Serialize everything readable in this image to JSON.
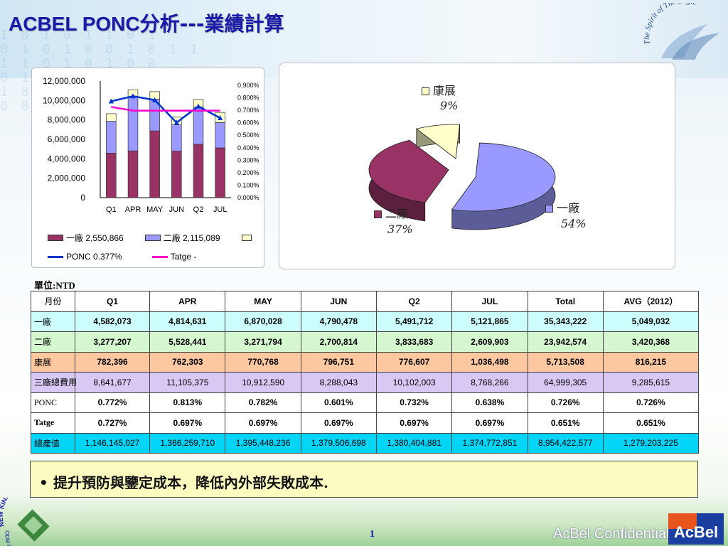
{
  "title": {
    "latin": "ACBEL  PONC",
    "cjk": "分析---業績計算"
  },
  "logos": {
    "eagle": "The Spirit of The Eagle",
    "kinpo_top": "NEW KINPO VALUE",
    "kinpo_bottom": "ODM & EMS Partner",
    "acbel": "AcBel"
  },
  "chart_data": [
    {
      "type": "bar",
      "stacked": true,
      "categories": [
        "Q1",
        "APR",
        "MAY",
        "JUN",
        "Q2",
        "JUL"
      ],
      "y_ticks": [
        "12,000,000",
        "10,000,000",
        "8,000,000",
        "6,000,000",
        "4,000,000",
        "2,000,000",
        "0"
      ],
      "y2_ticks": [
        "0.900%",
        "0.800%",
        "0.700%",
        "0.600%",
        "0.500%",
        "0.400%",
        "0.300%",
        "0.200%",
        "0.100%",
        "0.000%"
      ],
      "ylim": [
        0,
        12000000
      ],
      "y2lim": [
        0,
        0.9
      ],
      "series": [
        {
          "name": "一廠",
          "color": "#993366",
          "values": [
            4582073,
            4814631,
            6870028,
            4790478,
            5491712,
            5121865
          ]
        },
        {
          "name": "二廠",
          "color": "#9999ff",
          "values": [
            3277207,
            5528441,
            3271794,
            2700814,
            3833683,
            2609903
          ]
        },
        {
          "name": "康展",
          "color": "#ffffcc",
          "values": [
            782396,
            762303,
            770768,
            796751,
            776607,
            1036498
          ]
        }
      ],
      "lines": [
        {
          "name": "PONC",
          "color": "#0033cc",
          "values": [
            0.772,
            0.813,
            0.782,
            0.601,
            0.732,
            0.638
          ]
        },
        {
          "name": "Tatge",
          "color": "#ff00cc",
          "values": [
            0.727,
            0.697,
            0.697,
            0.697,
            0.697,
            0.697
          ]
        }
      ],
      "legend": [
        {
          "label": "一廠 2,550,866",
          "color": "#993366",
          "kind": "box"
        },
        {
          "label": "二廠 2,115,089",
          "color": "#9999ff",
          "kind": "box"
        },
        {
          "label": "",
          "color": "#ffffcc",
          "kind": "box"
        },
        {
          "label": "PONC 0.377%",
          "color": "#0033cc",
          "kind": "line-marker"
        },
        {
          "label": "Tatge -",
          "color": "#ff00cc",
          "kind": "line"
        }
      ]
    },
    {
      "type": "pie",
      "slices": [
        {
          "name": "一廠",
          "value": 54,
          "label": "54%",
          "color": "#9999ff"
        },
        {
          "name": "二廠",
          "value": 37,
          "label": "37%",
          "color": "#993366"
        },
        {
          "name": "康展",
          "value": 9,
          "label": "9%",
          "color": "#ffffcc"
        }
      ]
    }
  ],
  "unit_label": "單位:NTD",
  "table": {
    "headers": [
      "月份",
      "Q1",
      "APR",
      "MAY",
      "JUN",
      "Q2",
      "JUL",
      "Total",
      "AVG（2012）"
    ],
    "rows": [
      {
        "label": "一廠",
        "values": [
          "4,582,073",
          "4,814,631",
          "6,870,028",
          "4,790,478",
          "5,491,712",
          "5,121,865",
          "35,343,222",
          "5,049,032"
        ]
      },
      {
        "label": "二廠",
        "values": [
          "3,277,207",
          "5,528,441",
          "3,271,794",
          "2,700,814",
          "3,833,683",
          "2,609,903",
          "23,942,574",
          "3,420,368"
        ]
      },
      {
        "label": "康展",
        "values": [
          "782,396",
          "762,303",
          "770,768",
          "796,751",
          "776,607",
          "1,036,498",
          "5,713,508",
          "816,215"
        ]
      },
      {
        "label": "三廠總費用",
        "values": [
          "8,641,677",
          "11,105,375",
          "10,912,590",
          "8,288,043",
          "10,102,003",
          "8,768,266",
          "64,999,305",
          "9,285,615"
        ]
      },
      {
        "label": "PONC",
        "values": [
          "0.772%",
          "0.813%",
          "0.782%",
          "0.601%",
          "0.732%",
          "0.638%",
          "0.726%",
          "0.726%"
        ]
      },
      {
        "label": "Tatge",
        "values": [
          "0.727%",
          "0.697%",
          "0.697%",
          "0.697%",
          "0.697%",
          "0.697%",
          "0.651%",
          "0.651%"
        ]
      },
      {
        "label": "總產值",
        "values": [
          "1,146,145,027",
          "1,366,259,710",
          "1,395,448,236",
          "1,379,506,698",
          "1,380,404,881",
          "1,374,772,851",
          "8,954,422,577",
          "1,279,203,225"
        ]
      }
    ]
  },
  "note": {
    "bullet": "•",
    "text": "提升預防與鑒定成本，降低內外部失敗成本."
  },
  "footer": {
    "page": "1",
    "confidential": "AcBel Confidential"
  }
}
